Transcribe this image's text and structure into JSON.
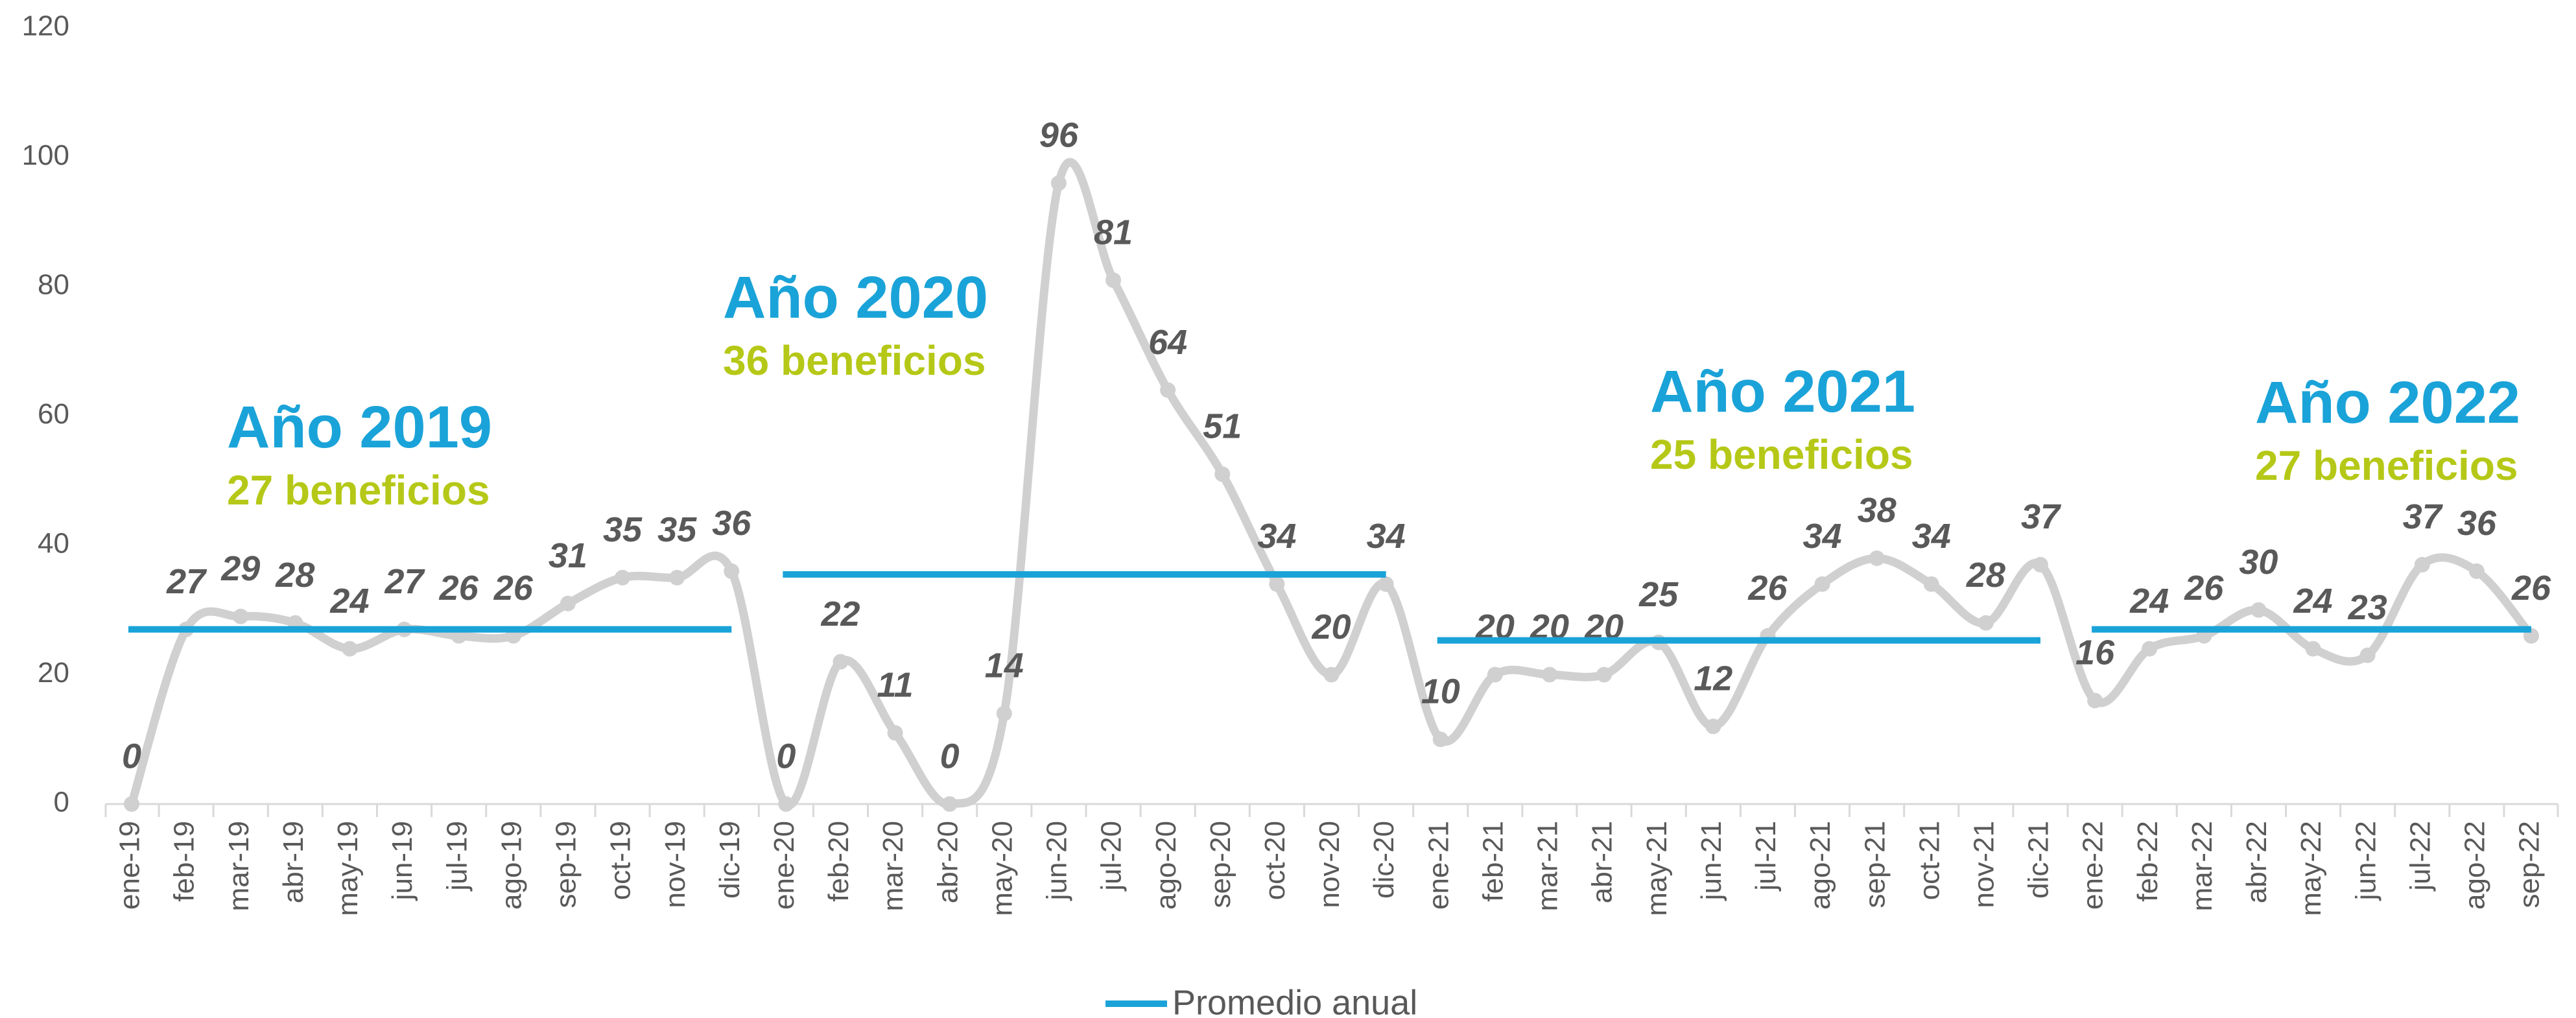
{
  "chart_data": {
    "type": "line",
    "categories": [
      "ene-19",
      "feb-19",
      "mar-19",
      "abr-19",
      "may-19",
      "jun-19",
      "jul-19",
      "ago-19",
      "sep-19",
      "oct-19",
      "nov-19",
      "dic-19",
      "ene-20",
      "feb-20",
      "mar-20",
      "abr-20",
      "may-20",
      "jun-20",
      "jul-20",
      "ago-20",
      "sep-20",
      "oct-20",
      "nov-20",
      "dic-20",
      "ene-21",
      "feb-21",
      "mar-21",
      "abr-21",
      "may-21",
      "jun-21",
      "jul-21",
      "ago-21",
      "sep-21",
      "oct-21",
      "nov-21",
      "dic-21",
      "ene-22",
      "feb-22",
      "mar-22",
      "abr-22",
      "may-22",
      "jun-22",
      "jul-22",
      "ago-22",
      "sep-22"
    ],
    "series": [
      {
        "color": "#d0d0d0",
        "values": [
          0,
          27,
          29,
          28,
          24,
          27,
          26,
          26,
          31,
          35,
          35,
          36,
          0,
          22,
          11,
          0,
          14,
          96,
          81,
          64,
          51,
          34,
          20,
          34,
          10,
          20,
          20,
          20,
          25,
          12,
          26,
          34,
          38,
          34,
          28,
          37,
          16,
          24,
          26,
          30,
          24,
          23,
          37,
          36,
          26
        ]
      }
    ],
    "annual_average": {
      "name": "Promedio anual",
      "color": "#1aa3d8",
      "values": [
        27,
        35.5,
        25.3,
        27
      ]
    },
    "annotations": [
      {
        "title": "Año 2019",
        "text": "27 beneficios"
      },
      {
        "title": "Año 2020",
        "text": "36 beneficios"
      },
      {
        "title": "Año 2021",
        "text": "25 beneficios"
      },
      {
        "title": "Año 2022",
        "text": "27 beneficios"
      }
    ],
    "ylim": [
      0,
      120
    ],
    "yticks": [
      0,
      20,
      40,
      60,
      80,
      100,
      120
    ],
    "grid": false
  }
}
